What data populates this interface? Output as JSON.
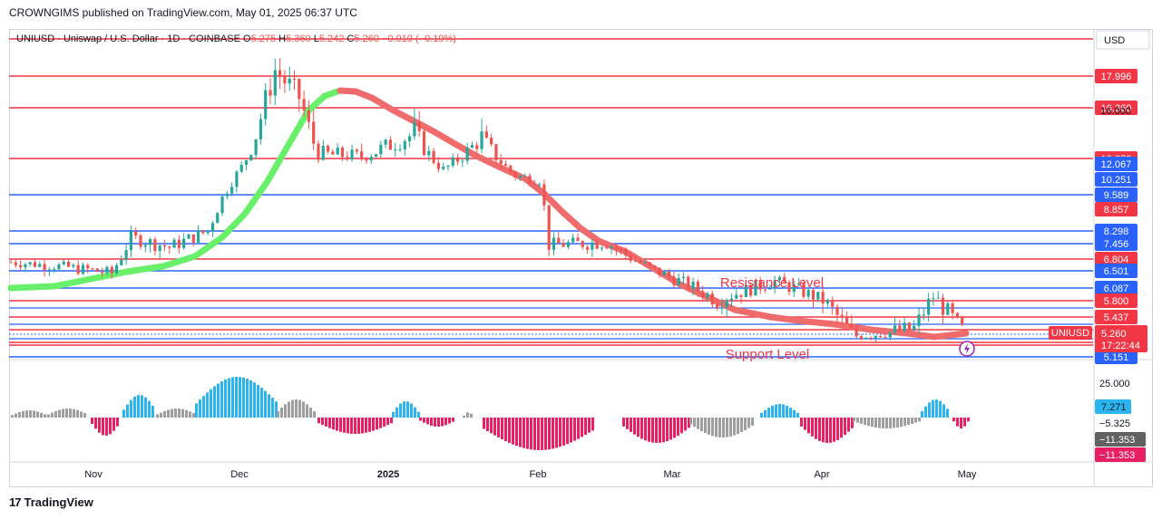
{
  "header": {
    "publisher": "CROWNGIMS published on TradingView.com, May 01, 2025 06:37 UTC"
  },
  "footer": {
    "logo_text": "TradingView",
    "logo_mark": "17"
  },
  "symbol_info": {
    "name": "UNIUSD · Uniswap / U.S. Dollar · 1D · COINBASE",
    "open_label": "O",
    "open": "5.275",
    "high_label": "H",
    "high": "5.360",
    "low_label": "L",
    "low": "5.242",
    "close_label": "C",
    "close": "5.260",
    "change": "−0.010 (−0.19%)"
  },
  "currency": "USD",
  "annotations": {
    "resistance": "Resistance Level",
    "support": "Support Level"
  },
  "current": {
    "symbol": "UNIUSD",
    "price": "5.260",
    "countdown": "17:22:44"
  },
  "colors": {
    "red_line": "#f23645",
    "blue_line": "#2962ff",
    "candle_up": "#26a69a",
    "candle_down": "#ef5350",
    "ma_up": "#69f06a",
    "ma_down": "#f06b6b",
    "hist_blue": "#2ab4f0",
    "hist_grey": "#9e9e9e",
    "hist_pink": "#e91e63"
  },
  "chart_data": {
    "type": "candlestick",
    "x_ticks": [
      "Nov",
      "Dec",
      "2025",
      "Feb",
      "Mar",
      "Apr",
      "May"
    ],
    "horizontal_levels": [
      {
        "value": 17.996,
        "label": "17.996",
        "color": "red"
      },
      {
        "value": 16.36,
        "label": "16.360",
        "color": "red"
      },
      {
        "value": 13.872,
        "label": "13.872",
        "color": "red"
      },
      {
        "value": 12.067,
        "label": "12.067",
        "color": "blue"
      },
      {
        "value": 10.251,
        "label": "10.251",
        "color": "blue"
      },
      {
        "value": 9.589,
        "label": "9.589",
        "color": "blue"
      },
      {
        "value": 8.857,
        "label": "8.857",
        "color": "red"
      },
      {
        "value": 8.298,
        "label": "8.298",
        "color": "blue"
      },
      {
        "value": 7.456,
        "label": "7.456",
        "color": "blue"
      },
      {
        "value": 6.804,
        "label": "6.804",
        "color": "red"
      },
      {
        "value": 6.501,
        "label": "6.501",
        "color": "blue"
      },
      {
        "value": 6.087,
        "label": "6.087",
        "color": "blue"
      },
      {
        "value": 5.8,
        "label": "5.800",
        "color": "red"
      },
      {
        "value": 5.437,
        "label": "5.437",
        "color": "red"
      },
      {
        "value": 5.151,
        "label": "5.151",
        "color": "blue"
      }
    ],
    "axis_extra_labels": [
      "16.000"
    ],
    "price_path": [
      {
        "date": "2024-10-14",
        "price": 7.3
      },
      {
        "date": "2024-10-24",
        "price": 7.1
      },
      {
        "date": "2024-11-04",
        "price": 6.8
      },
      {
        "date": "2024-11-08",
        "price": 8.3
      },
      {
        "date": "2024-11-16",
        "price": 7.9
      },
      {
        "date": "2024-11-24",
        "price": 8.6
      },
      {
        "date": "2024-12-01",
        "price": 12.5
      },
      {
        "date": "2024-12-08",
        "price": 17.2
      },
      {
        "date": "2024-12-13",
        "price": 16.0
      },
      {
        "date": "2024-12-17",
        "price": 13.5
      },
      {
        "date": "2024-12-26",
        "price": 13.3
      },
      {
        "date": "2025-01-06",
        "price": 14.6
      },
      {
        "date": "2025-01-12",
        "price": 12.3
      },
      {
        "date": "2025-01-20",
        "price": 14.4
      },
      {
        "date": "2025-01-27",
        "price": 11.8
      },
      {
        "date": "2025-02-01",
        "price": 11.5
      },
      {
        "date": "2025-02-03",
        "price": 8.0
      },
      {
        "date": "2025-02-15",
        "price": 8.1
      },
      {
        "date": "2025-02-25",
        "price": 6.9
      },
      {
        "date": "2025-03-10",
        "price": 5.9
      },
      {
        "date": "2025-03-22",
        "price": 6.5
      },
      {
        "date": "2025-04-01",
        "price": 5.9
      },
      {
        "date": "2025-04-08",
        "price": 5.1
      },
      {
        "date": "2025-04-20",
        "price": 5.3
      },
      {
        "date": "2025-04-24",
        "price": 6.0
      },
      {
        "date": "2025-04-30",
        "price": 5.26
      }
    ],
    "oscillator": {
      "axis_labels": [
        "25.000",
        "7.271",
        "−5.325",
        "−11.353",
        "−11.353"
      ]
    }
  }
}
